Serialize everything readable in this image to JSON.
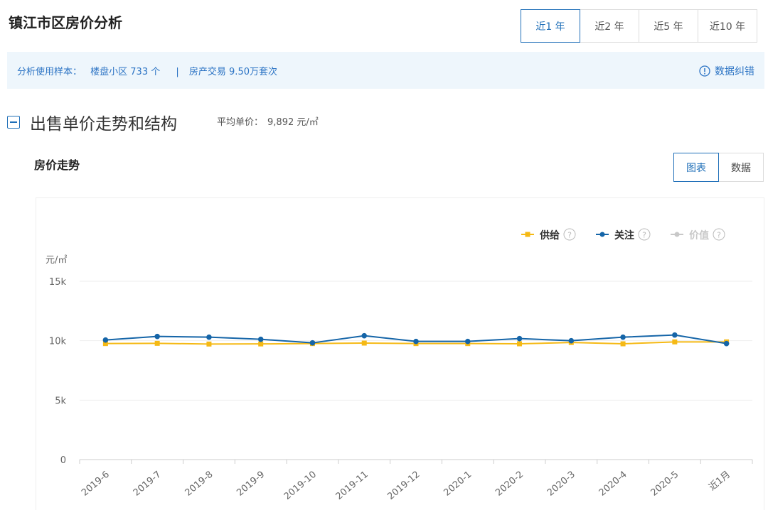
{
  "header": {
    "title": "镇江市区房价分析",
    "tabs": [
      "近1 年",
      "近2 年",
      "近5 年",
      "近10 年"
    ],
    "active_tab": 0
  },
  "sample": {
    "label": "分析使用样本：",
    "communities": "楼盘小区 733 个",
    "separator": "|",
    "transactions": "房产交易 9.50万套次",
    "correction": "数据纠错"
  },
  "section": {
    "title": "出售单价走势和结构",
    "avg_label": "平均单价：",
    "avg_value": "9,892 元/㎡"
  },
  "panel": {
    "title": "房价走势",
    "buttons": [
      "图表",
      "数据"
    ],
    "active_button": 0
  },
  "chart_data": {
    "type": "line",
    "y_unit": "元/㎡",
    "categories": [
      "2019-6",
      "2019-7",
      "2019-8",
      "2019-9",
      "2019-10",
      "2019-11",
      "2019-12",
      "2020-1",
      "2020-2",
      "2020-3",
      "2020-4",
      "2020-5",
      "近1月"
    ],
    "series": [
      {
        "name": "供给",
        "color": "#f5b915",
        "marker": "square",
        "values": [
          9760,
          9780,
          9720,
          9730,
          9760,
          9800,
          9760,
          9760,
          9740,
          9850,
          9740,
          9900,
          9900
        ]
      },
      {
        "name": "关注",
        "color": "#1565a8",
        "marker": "circle",
        "values": [
          10060,
          10360,
          10300,
          10120,
          9820,
          10420,
          9940,
          9940,
          10180,
          10000,
          10300,
          10480,
          9760
        ]
      },
      {
        "name": "价值",
        "color": "#c8c8c8",
        "marker": "circle",
        "hidden": true,
        "values": [
          null,
          null,
          null,
          null,
          null,
          null,
          null,
          null,
          null,
          null,
          null,
          null,
          null
        ]
      }
    ],
    "ylim": [
      0,
      15000
    ],
    "yticks": [
      0,
      {
        "value": 5000,
        "label": "5k"
      },
      {
        "value": 10000,
        "label": "10k"
      },
      {
        "value": 15000,
        "label": "15k"
      }
    ],
    "grid": true
  }
}
